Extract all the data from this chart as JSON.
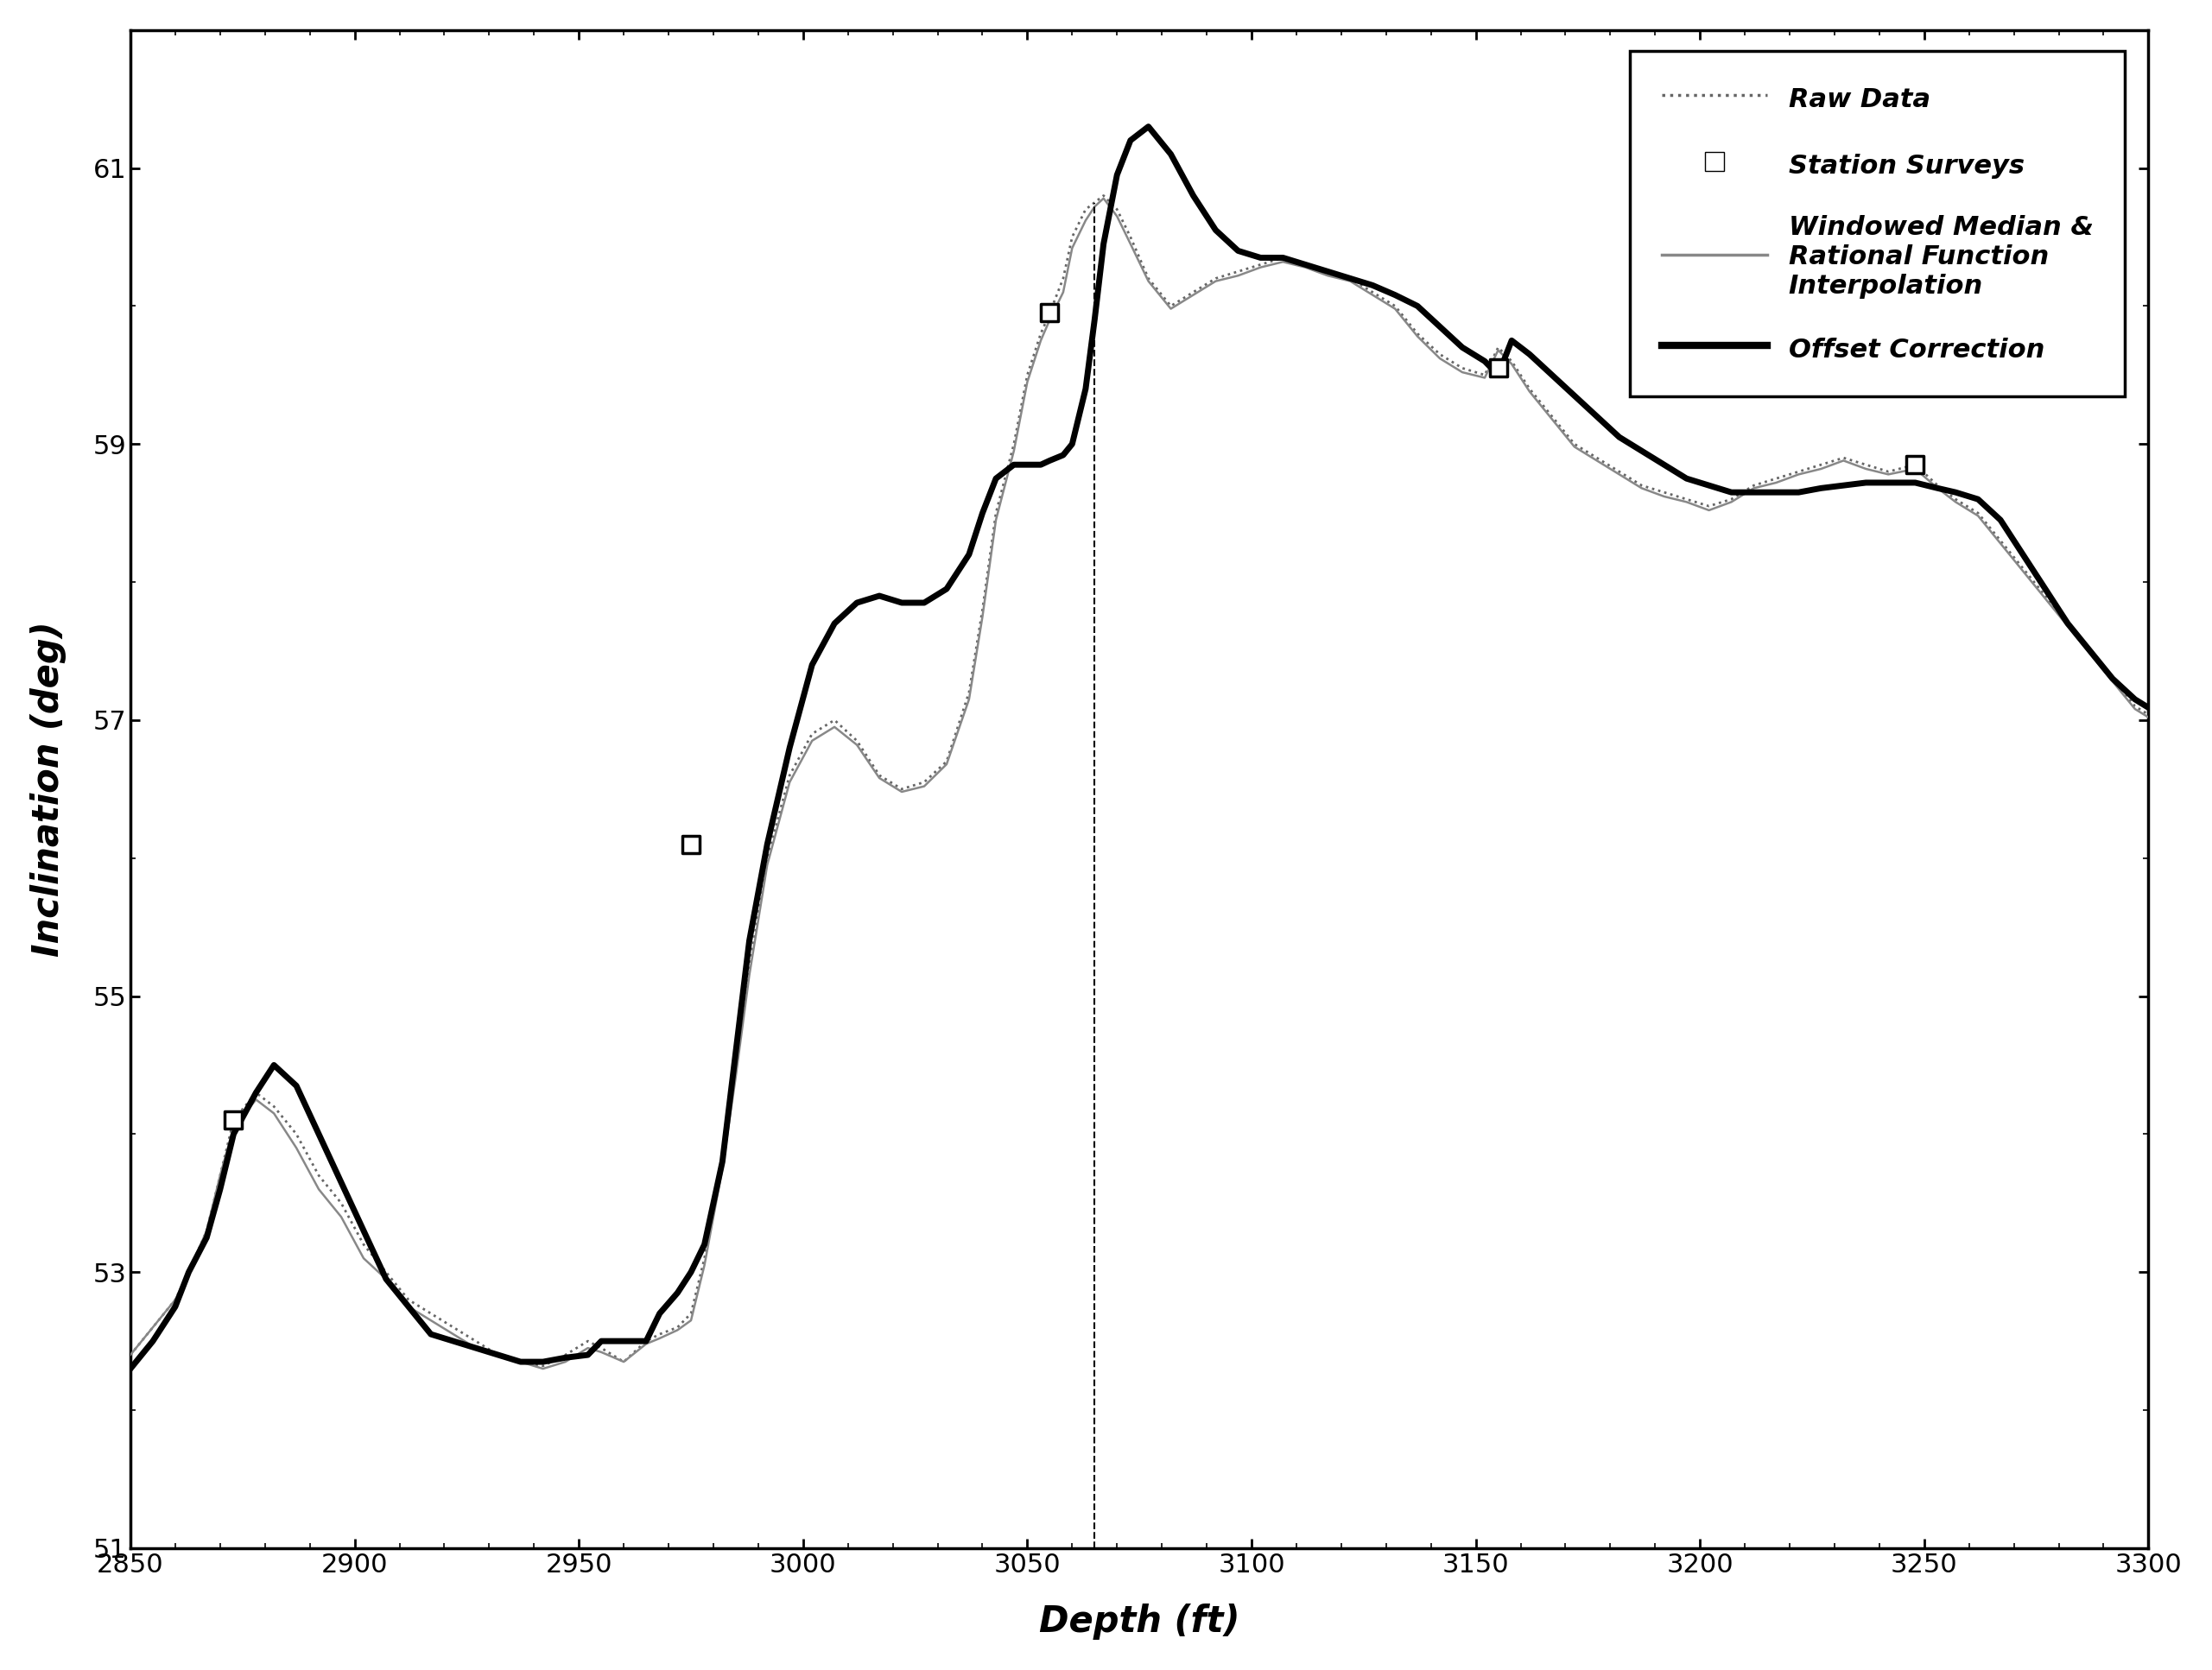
{
  "xlim": [
    2850,
    3300
  ],
  "ylim": [
    51,
    62
  ],
  "xticks": [
    2850,
    2900,
    2950,
    3000,
    3050,
    3100,
    3150,
    3200,
    3250,
    3300
  ],
  "yticks": [
    51,
    53,
    55,
    57,
    59,
    61
  ],
  "xlabel": "Depth (ft)",
  "ylabel": "Inclination (deg)",
  "background_color": "#ffffff",
  "raw_color": "#666666",
  "smooth_color": "#888888",
  "offset_color": "#000000",
  "station_color": "#000000",
  "vertical_dashed_x": 3065,
  "vertical_dashed_y_top": 60.75,
  "station_surveys_x": [
    2873,
    2975,
    3055,
    3155,
    3248
  ],
  "station_surveys_y": [
    54.1,
    56.1,
    59.95,
    59.55,
    58.85
  ],
  "raw_x": [
    2850,
    2855,
    2860,
    2863,
    2867,
    2870,
    2873,
    2878,
    2882,
    2887,
    2892,
    2897,
    2902,
    2907,
    2912,
    2917,
    2922,
    2927,
    2932,
    2937,
    2942,
    2947,
    2952,
    2955,
    2960,
    2965,
    2968,
    2972,
    2975,
    2978,
    2982,
    2985,
    2988,
    2992,
    2997,
    3002,
    3007,
    3012,
    3017,
    3022,
    3027,
    3032,
    3037,
    3040,
    3043,
    3047,
    3050,
    3053,
    3055,
    3058,
    3060,
    3063,
    3065,
    3067,
    3070,
    3073,
    3077,
    3082,
    3087,
    3092,
    3097,
    3102,
    3107,
    3112,
    3117,
    3122,
    3127,
    3132,
    3137,
    3142,
    3147,
    3152,
    3155,
    3158,
    3162,
    3167,
    3172,
    3177,
    3182,
    3187,
    3192,
    3197,
    3202,
    3207,
    3212,
    3217,
    3222,
    3227,
    3232,
    3237,
    3242,
    3248,
    3253,
    3257,
    3262,
    3267,
    3272,
    3277,
    3282,
    3287,
    3292,
    3297,
    3302
  ],
  "raw_y": [
    52.4,
    52.6,
    52.8,
    53.0,
    53.3,
    53.7,
    54.1,
    54.3,
    54.2,
    54.0,
    53.7,
    53.5,
    53.2,
    53.0,
    52.8,
    52.7,
    52.6,
    52.5,
    52.4,
    52.35,
    52.32,
    52.4,
    52.5,
    52.45,
    52.35,
    52.5,
    52.55,
    52.6,
    52.7,
    53.1,
    53.8,
    54.5,
    55.2,
    56.0,
    56.6,
    56.9,
    57.0,
    56.85,
    56.6,
    56.5,
    56.55,
    56.7,
    57.2,
    57.8,
    58.5,
    59.0,
    59.5,
    59.8,
    59.95,
    60.2,
    60.5,
    60.7,
    60.75,
    60.8,
    60.7,
    60.5,
    60.2,
    60.0,
    60.1,
    60.2,
    60.25,
    60.3,
    60.35,
    60.3,
    60.25,
    60.2,
    60.1,
    60.0,
    59.8,
    59.65,
    59.55,
    59.5,
    59.7,
    59.6,
    59.4,
    59.2,
    59.0,
    58.9,
    58.8,
    58.7,
    58.65,
    58.6,
    58.55,
    58.6,
    58.7,
    58.75,
    58.8,
    58.85,
    58.9,
    58.85,
    58.8,
    58.85,
    58.7,
    58.6,
    58.5,
    58.3,
    58.1,
    57.9,
    57.7,
    57.5,
    57.3,
    57.1,
    57.0
  ],
  "smooth_x": [
    2850,
    2855,
    2860,
    2863,
    2867,
    2870,
    2873,
    2878,
    2882,
    2887,
    2892,
    2897,
    2902,
    2907,
    2912,
    2917,
    2922,
    2927,
    2932,
    2937,
    2942,
    2947,
    2952,
    2955,
    2960,
    2965,
    2968,
    2972,
    2975,
    2978,
    2982,
    2985,
    2988,
    2992,
    2997,
    3002,
    3007,
    3012,
    3017,
    3022,
    3027,
    3032,
    3037,
    3040,
    3043,
    3047,
    3050,
    3053,
    3055,
    3058,
    3060,
    3063,
    3065,
    3067,
    3070,
    3073,
    3077,
    3082,
    3087,
    3092,
    3097,
    3102,
    3107,
    3112,
    3117,
    3122,
    3127,
    3132,
    3137,
    3142,
    3147,
    3152,
    3155,
    3158,
    3162,
    3167,
    3172,
    3177,
    3182,
    3187,
    3192,
    3197,
    3202,
    3207,
    3212,
    3217,
    3222,
    3227,
    3232,
    3237,
    3242,
    3248,
    3253,
    3257,
    3262,
    3267,
    3272,
    3277,
    3282,
    3287,
    3292,
    3297,
    3302
  ],
  "smooth_y": [
    52.4,
    52.6,
    52.8,
    53.0,
    53.3,
    53.7,
    54.05,
    54.25,
    54.15,
    53.9,
    53.6,
    53.4,
    53.1,
    52.95,
    52.75,
    52.65,
    52.55,
    52.45,
    52.4,
    52.35,
    52.3,
    52.35,
    52.45,
    52.42,
    52.35,
    52.48,
    52.52,
    52.58,
    52.65,
    53.05,
    53.75,
    54.42,
    55.15,
    55.95,
    56.55,
    56.85,
    56.95,
    56.82,
    56.58,
    56.48,
    56.52,
    56.68,
    57.15,
    57.75,
    58.45,
    58.95,
    59.45,
    59.75,
    59.9,
    60.1,
    60.42,
    60.62,
    60.72,
    60.78,
    60.65,
    60.45,
    60.18,
    59.98,
    60.08,
    60.18,
    60.22,
    60.28,
    60.32,
    60.28,
    60.22,
    60.18,
    60.08,
    59.98,
    59.78,
    59.62,
    59.52,
    59.48,
    59.68,
    59.58,
    59.38,
    59.18,
    58.98,
    58.88,
    58.78,
    58.68,
    58.62,
    58.58,
    58.52,
    58.58,
    58.68,
    58.72,
    58.78,
    58.82,
    58.88,
    58.82,
    58.78,
    58.82,
    58.68,
    58.58,
    58.48,
    58.28,
    58.08,
    57.88,
    57.68,
    57.48,
    57.28,
    57.08,
    56.98
  ],
  "offset_x": [
    2850,
    2855,
    2860,
    2863,
    2867,
    2870,
    2873,
    2878,
    2882,
    2887,
    2892,
    2897,
    2902,
    2907,
    2912,
    2917,
    2922,
    2927,
    2932,
    2937,
    2942,
    2947,
    2952,
    2955,
    2960,
    2965,
    2968,
    2972,
    2975,
    2978,
    2982,
    2985,
    2988,
    2992,
    2997,
    3002,
    3007,
    3012,
    3017,
    3022,
    3027,
    3032,
    3037,
    3040,
    3043,
    3047,
    3050,
    3053,
    3055,
    3058,
    3060,
    3063,
    3065,
    3067,
    3070,
    3073,
    3077,
    3082,
    3087,
    3092,
    3097,
    3102,
    3107,
    3112,
    3117,
    3122,
    3127,
    3132,
    3137,
    3142,
    3147,
    3152,
    3155,
    3158,
    3162,
    3167,
    3172,
    3177,
    3182,
    3187,
    3192,
    3197,
    3202,
    3207,
    3212,
    3217,
    3222,
    3227,
    3232,
    3237,
    3242,
    3248,
    3253,
    3257,
    3262,
    3267,
    3272,
    3277,
    3282,
    3287,
    3292,
    3297,
    3302
  ],
  "offset_y": [
    52.3,
    52.5,
    52.75,
    53.0,
    53.25,
    53.6,
    54.0,
    54.3,
    54.5,
    54.35,
    54.0,
    53.65,
    53.3,
    52.95,
    52.75,
    52.55,
    52.5,
    52.45,
    52.4,
    52.35,
    52.35,
    52.38,
    52.4,
    52.5,
    52.5,
    52.5,
    52.7,
    52.85,
    53.0,
    53.2,
    53.8,
    54.6,
    55.4,
    56.1,
    56.8,
    57.4,
    57.7,
    57.85,
    57.9,
    57.85,
    57.85,
    57.95,
    58.2,
    58.5,
    58.75,
    58.85,
    58.85,
    58.85,
    58.88,
    58.92,
    59.0,
    59.4,
    59.9,
    60.45,
    60.95,
    61.2,
    61.3,
    61.1,
    60.8,
    60.55,
    60.4,
    60.35,
    60.35,
    60.3,
    60.25,
    60.2,
    60.15,
    60.08,
    60.0,
    59.85,
    59.7,
    59.6,
    59.5,
    59.75,
    59.65,
    59.5,
    59.35,
    59.2,
    59.05,
    58.95,
    58.85,
    58.75,
    58.7,
    58.65,
    58.65,
    58.65,
    58.65,
    58.68,
    58.7,
    58.72,
    58.72,
    58.72,
    58.68,
    58.65,
    58.6,
    58.45,
    58.2,
    57.95,
    57.7,
    57.5,
    57.3,
    57.15,
    57.05
  ]
}
